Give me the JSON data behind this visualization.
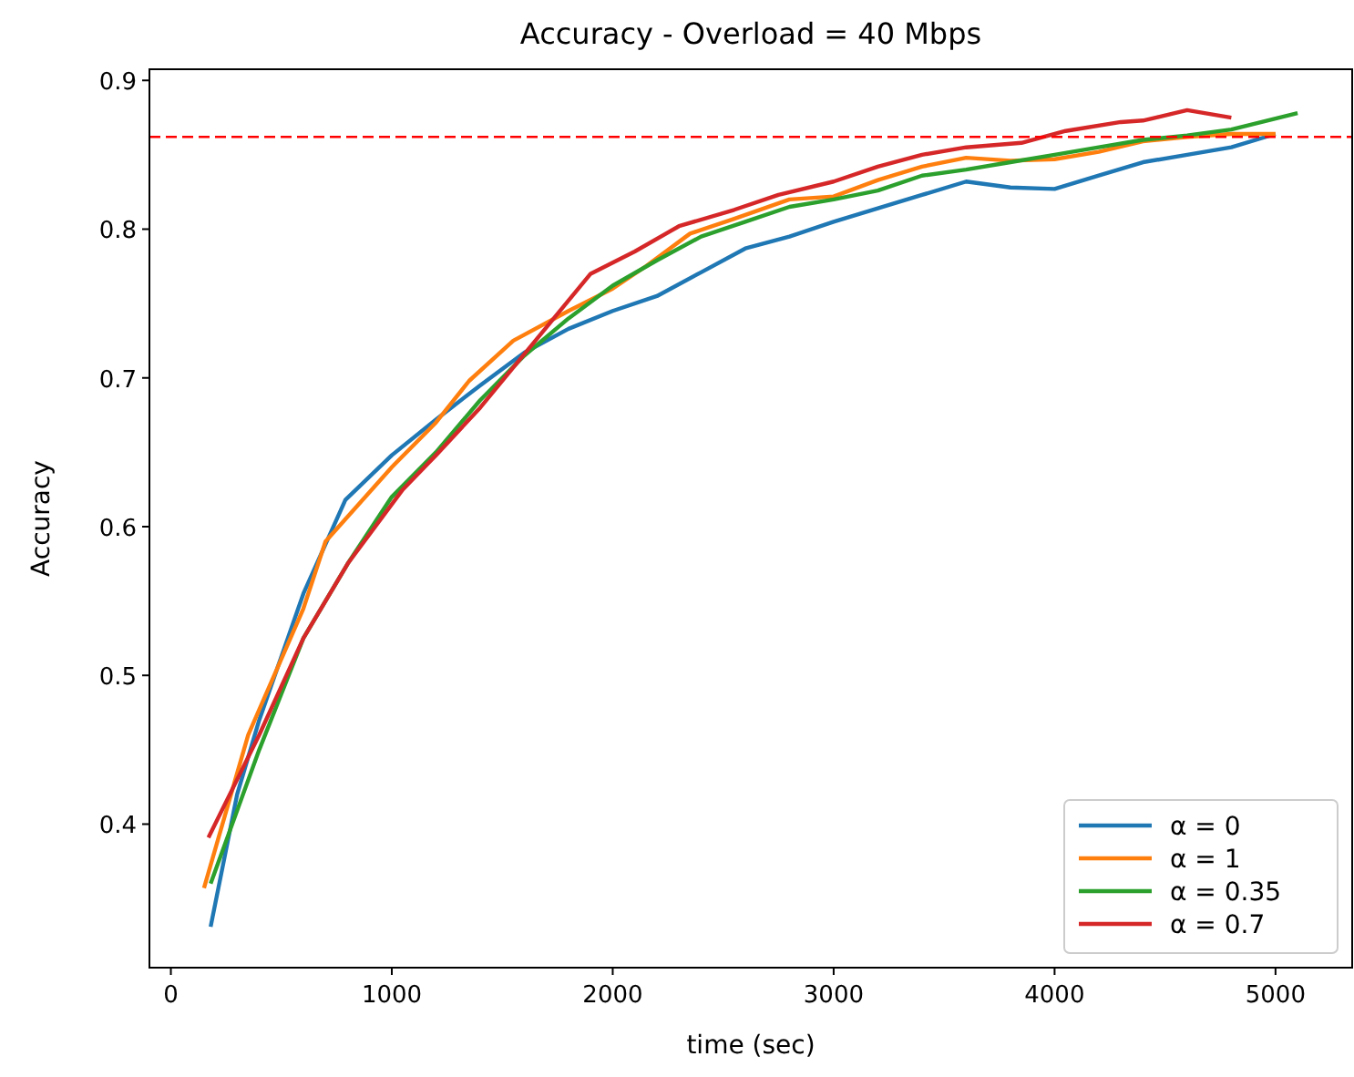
{
  "chart_data": {
    "type": "line",
    "title": "Accuracy - Overload = 40 Mbps",
    "xlabel": "time (sec)",
    "ylabel": "Accuracy",
    "xlim": [
      -97,
      5347
    ],
    "xticks": [
      0,
      1000,
      2000,
      3000,
      4000,
      5000
    ],
    "ylim": [
      0.3035,
      0.9075
    ],
    "yticks": [
      0.4,
      0.5,
      0.6,
      0.7,
      0.8,
      0.9
    ],
    "grid": false,
    "legend": "bottom right",
    "marker": "none",
    "line_style": "solid",
    "ref_lines": [
      {
        "axis": "y",
        "value": 0.862,
        "color": "#ff0000",
        "line_style": "dashed"
      }
    ],
    "series": [
      {
        "name": "α = 0",
        "color": "#1f77b4",
        "x": [
          180,
          300,
          400,
          600,
          790,
          1000,
          1200,
          1400,
          1600,
          1800,
          2000,
          2200,
          2400,
          2600,
          2800,
          3000,
          3200,
          3400,
          3600,
          3800,
          4000,
          4200,
          4400,
          4600,
          4800,
          5000
        ],
        "values": [
          0.331,
          0.42,
          0.47,
          0.555,
          0.618,
          0.648,
          0.672,
          0.695,
          0.717,
          0.733,
          0.745,
          0.755,
          0.771,
          0.787,
          0.795,
          0.805,
          0.814,
          0.823,
          0.832,
          0.828,
          0.827,
          0.836,
          0.845,
          0.85,
          0.855,
          0.864
        ]
      },
      {
        "name": "α = 1",
        "color": "#ff7f0e",
        "x": [
          150,
          350,
          600,
          700,
          1000,
          1200,
          1350,
          1550,
          1800,
          2000,
          2150,
          2350,
          2550,
          2800,
          3000,
          3200,
          3400,
          3600,
          3800,
          4000,
          4200,
          4400,
          4600,
          4800,
          5000
        ],
        "values": [
          0.357,
          0.46,
          0.545,
          0.59,
          0.64,
          0.67,
          0.698,
          0.725,
          0.745,
          0.76,
          0.775,
          0.797,
          0.807,
          0.82,
          0.822,
          0.833,
          0.842,
          0.848,
          0.846,
          0.847,
          0.852,
          0.859,
          0.862,
          0.864,
          0.864
        ]
      },
      {
        "name": "α = 0.35",
        "color": "#2ca02c",
        "x": [
          180,
          400,
          600,
          800,
          1000,
          1200,
          1400,
          1600,
          1800,
          2000,
          2200,
          2400,
          2600,
          2800,
          3000,
          3200,
          3400,
          3600,
          3800,
          4000,
          4200,
          4400,
          4600,
          4800,
          5100
        ],
        "values": [
          0.36,
          0.45,
          0.525,
          0.575,
          0.62,
          0.65,
          0.685,
          0.715,
          0.74,
          0.762,
          0.779,
          0.795,
          0.805,
          0.815,
          0.82,
          0.826,
          0.836,
          0.84,
          0.845,
          0.85,
          0.855,
          0.86,
          0.863,
          0.867,
          0.878
        ]
      },
      {
        "name": "α = 0.7",
        "color": "#d62728",
        "x": [
          170,
          400,
          600,
          800,
          1050,
          1200,
          1400,
          1650,
          1900,
          2100,
          2300,
          2550,
          2750,
          3000,
          3200,
          3400,
          3600,
          3850,
          4050,
          4300,
          4400,
          4600,
          4800
        ],
        "values": [
          0.391,
          0.46,
          0.525,
          0.575,
          0.625,
          0.648,
          0.68,
          0.725,
          0.77,
          0.785,
          0.802,
          0.813,
          0.823,
          0.832,
          0.842,
          0.85,
          0.855,
          0.858,
          0.866,
          0.872,
          0.873,
          0.88,
          0.875
        ]
      }
    ]
  }
}
